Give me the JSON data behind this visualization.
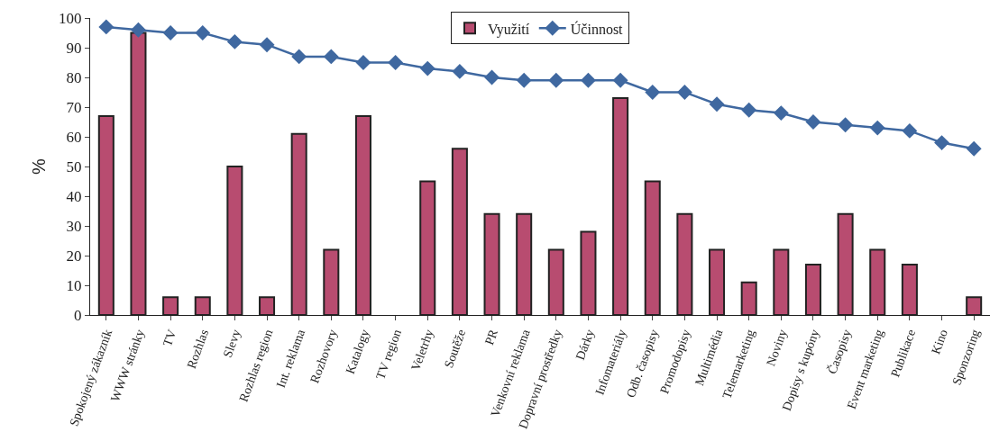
{
  "chart_data": {
    "type": "bar",
    "ylabel": "%",
    "categories": [
      "Spokojený zákazník",
      "WWW stránky",
      "TV",
      "Rozhlas",
      "Slevy",
      "Rozhlas region",
      "Int. reklama",
      "Rozhovory",
      "Katalogy",
      "TV region",
      "Veletrhy",
      "Soutěže",
      "PR",
      "Venkovní reklama",
      "Dopravní prostředky",
      "Dárky",
      "Infomateriály",
      "Odb. časopisy",
      "Promodopisy",
      "Multimédia",
      "Telemarketing",
      "Noviny",
      "Dopisy s kupóny",
      "Časopisy",
      "Event marketing",
      "Publikace",
      "Kino",
      "Sponzoring"
    ],
    "series": [
      {
        "name": "Využití",
        "color": "#b84c70",
        "values": [
          67,
          95,
          6,
          6,
          50,
          6,
          61,
          22,
          67,
          0,
          45,
          56,
          34,
          34,
          22,
          28,
          73,
          45,
          34,
          22,
          11,
          22,
          17,
          34,
          22,
          17,
          0,
          6
        ]
      },
      {
        "name": "Účinnost",
        "type": "line",
        "color": "#3f68a0",
        "marker": "diamond",
        "values": [
          97,
          96,
          95,
          95,
          92,
          91,
          87,
          87,
          85,
          85,
          83,
          82,
          80,
          79,
          79,
          79,
          79,
          75,
          75,
          71,
          69,
          68,
          65,
          64,
          63,
          62,
          58,
          56
        ]
      }
    ],
    "ylim": [
      0,
      100
    ],
    "yticks": [
      0,
      10,
      20,
      30,
      40,
      50,
      60,
      70,
      80,
      90,
      100
    ],
    "grid": false,
    "legend": "top"
  }
}
